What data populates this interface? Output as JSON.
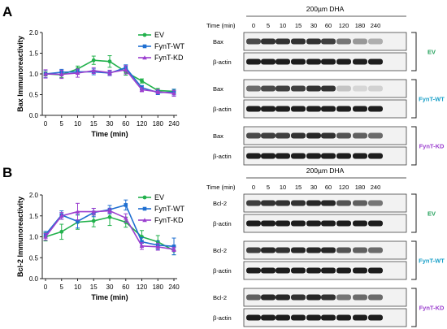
{
  "chart_data": [
    {
      "panel": "A",
      "type": "line",
      "ylabel": "Bax Immunoreactivity",
      "xlabel": "Time (min)",
      "categories": [
        "0",
        "5",
        "10",
        "15",
        "30",
        "60",
        "120",
        "180",
        "240"
      ],
      "ylim": [
        0,
        2.0
      ],
      "yticks": [
        "0.0",
        "0.5",
        "1.0",
        "1.5",
        "2.0"
      ],
      "legend_position": "top-right",
      "series": [
        {
          "name": "EV",
          "color": "#22b14c",
          "values": [
            1.0,
            0.98,
            1.12,
            1.33,
            1.3,
            1.05,
            0.83,
            0.6,
            0.58
          ],
          "errors": [
            0.05,
            0.07,
            0.07,
            0.1,
            0.14,
            0.08,
            0.05,
            0.05,
            0.05
          ]
        },
        {
          "name": "FynT-WT",
          "color": "#1f6fd1",
          "values": [
            1.0,
            1.04,
            1.05,
            1.05,
            1.02,
            1.15,
            0.67,
            0.55,
            0.56
          ],
          "errors": [
            0.09,
            0.07,
            0.06,
            0.07,
            0.06,
            0.07,
            0.05,
            0.05,
            0.07
          ]
        },
        {
          "name": "FynT-KD",
          "color": "#9b3fcf",
          "values": [
            1.0,
            0.99,
            1.02,
            1.08,
            1.03,
            1.1,
            0.62,
            0.57,
            0.53
          ],
          "errors": [
            0.1,
            0.1,
            0.1,
            0.07,
            0.06,
            0.1,
            0.05,
            0.05,
            0.07
          ]
        }
      ]
    },
    {
      "panel": "B",
      "type": "line",
      "ylabel": "Bcl-2 Immunoreactivity",
      "xlabel": "Time (min)",
      "categories": [
        "0",
        "5",
        "10",
        "15",
        "30",
        "60",
        "120",
        "180",
        "240"
      ],
      "ylim": [
        0,
        2.0
      ],
      "yticks": [
        "0.0",
        "0.5",
        "1.0",
        "1.5",
        "2.0"
      ],
      "legend_position": "top-right",
      "series": [
        {
          "name": "EV",
          "color": "#22b14c",
          "values": [
            1.0,
            1.12,
            1.35,
            1.38,
            1.47,
            1.35,
            1.0,
            0.88,
            0.67
          ],
          "errors": [
            0.1,
            0.18,
            0.17,
            0.14,
            0.2,
            0.12,
            0.15,
            0.15,
            0.1
          ]
        },
        {
          "name": "FynT-WT",
          "color": "#1f6fd1",
          "values": [
            1.05,
            1.52,
            1.37,
            1.58,
            1.65,
            1.76,
            0.88,
            0.8,
            0.77
          ],
          "errors": [
            0.08,
            0.1,
            0.16,
            0.1,
            0.1,
            0.12,
            0.1,
            0.1,
            0.2
          ]
        },
        {
          "name": "FynT-KD",
          "color": "#9b3fcf",
          "values": [
            1.0,
            1.5,
            1.6,
            1.6,
            1.62,
            1.45,
            0.78,
            0.76,
            0.7
          ],
          "errors": [
            0.08,
            0.08,
            0.2,
            0.08,
            0.05,
            0.1,
            0.08,
            0.08,
            0.05
          ]
        }
      ]
    }
  ],
  "blots": [
    {
      "panel": "A",
      "header": "200µm DHA",
      "time_label": "Time (min)",
      "times": [
        "0",
        "5",
        "10",
        "15",
        "30",
        "60",
        "120",
        "180",
        "240"
      ],
      "groups": [
        {
          "name": "EV",
          "color": "#22a05a",
          "rows": [
            {
              "label": "Bax",
              "intensities": [
                0.75,
                0.85,
                0.85,
                0.85,
                0.85,
                0.8,
                0.55,
                0.4,
                0.3
              ]
            },
            {
              "label": "β-actin",
              "intensities": [
                0.95,
                0.95,
                0.95,
                0.95,
                0.95,
                0.95,
                0.95,
                0.95,
                0.95
              ]
            }
          ]
        },
        {
          "name": "FynT-WT",
          "color": "#1aa0c8",
          "rows": [
            {
              "label": "Bax",
              "intensities": [
                0.6,
                0.75,
                0.8,
                0.8,
                0.85,
                0.85,
                0.2,
                0.12,
                0.15
              ]
            },
            {
              "label": "β-actin",
              "intensities": [
                0.95,
                0.95,
                0.95,
                0.95,
                0.95,
                0.95,
                0.95,
                0.95,
                0.95
              ]
            }
          ]
        },
        {
          "name": "FynT-KD",
          "color": "#9b3fcf",
          "rows": [
            {
              "label": "Bax",
              "intensities": [
                0.75,
                0.8,
                0.8,
                0.85,
                0.9,
                0.85,
                0.7,
                0.65,
                0.6
              ]
            },
            {
              "label": "β-actin",
              "intensities": [
                0.95,
                0.95,
                0.95,
                0.95,
                0.95,
                0.95,
                0.95,
                0.95,
                0.95
              ]
            }
          ]
        }
      ]
    },
    {
      "panel": "B",
      "header": "200µm DHA",
      "time_label": "Time (min)",
      "times": [
        "0",
        "5",
        "10",
        "15",
        "30",
        "60",
        "120",
        "180",
        "240"
      ],
      "groups": [
        {
          "name": "EV",
          "color": "#22a05a",
          "rows": [
            {
              "label": "Bcl-2",
              "intensities": [
                0.8,
                0.85,
                0.85,
                0.85,
                0.9,
                0.9,
                0.7,
                0.65,
                0.55
              ]
            },
            {
              "label": "β-actin",
              "intensities": [
                0.95,
                0.95,
                0.95,
                0.95,
                0.95,
                0.95,
                0.95,
                0.95,
                0.95
              ]
            }
          ]
        },
        {
          "name": "FynT-WT",
          "color": "#1aa0c8",
          "rows": [
            {
              "label": "Bcl-2",
              "intensities": [
                0.8,
                0.9,
                0.85,
                0.9,
                0.9,
                0.9,
                0.7,
                0.65,
                0.6
              ]
            },
            {
              "label": "β-actin",
              "intensities": [
                0.95,
                0.95,
                0.95,
                0.95,
                0.95,
                0.95,
                0.95,
                0.95,
                0.95
              ]
            }
          ]
        },
        {
          "name": "FynT-KD",
          "color": "#9b3fcf",
          "rows": [
            {
              "label": "Bcl-2",
              "intensities": [
                0.65,
                0.9,
                0.9,
                0.85,
                0.9,
                0.85,
                0.55,
                0.6,
                0.6
              ]
            },
            {
              "label": "β-actin",
              "intensities": [
                0.95,
                0.95,
                0.95,
                0.95,
                0.95,
                0.95,
                0.95,
                0.95,
                0.95
              ]
            }
          ]
        }
      ]
    }
  ]
}
